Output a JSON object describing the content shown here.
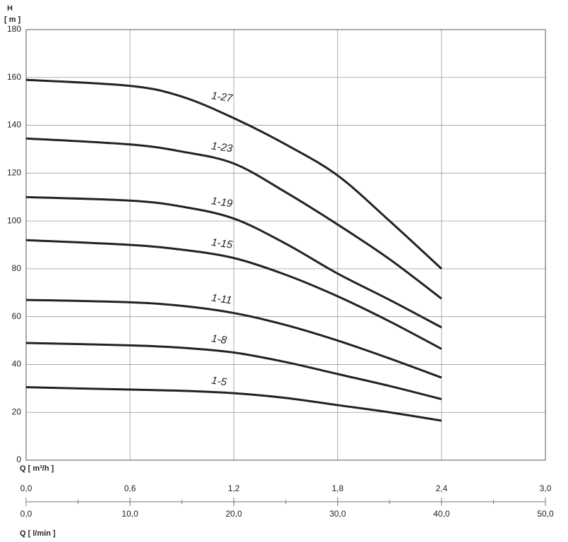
{
  "chart_data": {
    "type": "line",
    "y_label": "H",
    "y_unit": "[ m ]",
    "x_label": "Q [ m³/h ]",
    "x2_label": "Q [ l/min ]",
    "x": [
      0,
      0.6,
      0.9,
      1.2,
      1.5,
      1.8,
      2.1,
      2.4
    ],
    "series": [
      {
        "name": "1-27",
        "color": "#222222",
        "values": [
          159,
          156.5,
          152,
          143,
          132,
          119,
          100,
          80
        ]
      },
      {
        "name": "1-23",
        "color": "#222222",
        "values": [
          134.5,
          132,
          129,
          124,
          112,
          98.5,
          84,
          67.5
        ]
      },
      {
        "name": "1-19",
        "color": "#222222",
        "values": [
          110,
          108.5,
          106,
          101,
          90.5,
          78,
          67,
          55.5
        ]
      },
      {
        "name": "1-15",
        "color": "#222222",
        "values": [
          92,
          90,
          88,
          84.5,
          77.5,
          68.5,
          58,
          46.5
        ]
      },
      {
        "name": "1-11",
        "color": "#222222",
        "values": [
          67,
          66,
          64.5,
          61.5,
          56.5,
          50,
          42.5,
          34.5
        ]
      },
      {
        "name": "1-8",
        "color": "#222222",
        "values": [
          49,
          48,
          47,
          45,
          41,
          36,
          31,
          25.5
        ]
      },
      {
        "name": "1-5",
        "color": "#222222",
        "values": [
          30.5,
          29.5,
          29,
          28,
          26,
          23,
          20,
          16.5
        ]
      }
    ],
    "xlim": [
      0,
      3
    ],
    "xticks": [
      {
        "value": 0,
        "label": "0,0"
      },
      {
        "value": 0.6,
        "label": "0,6"
      },
      {
        "value": 1.2,
        "label": "1,2"
      },
      {
        "value": 1.8,
        "label": "1,8"
      },
      {
        "value": 2.4,
        "label": "2,4"
      },
      {
        "value": 3,
        "label": "3,0"
      }
    ],
    "x2lim": [
      0,
      50
    ],
    "x2ticks": [
      {
        "value": 0,
        "label": "0,0"
      },
      {
        "value": 10,
        "label": "10,0"
      },
      {
        "value": 20,
        "label": "20,0"
      },
      {
        "value": 30,
        "label": "30,0"
      },
      {
        "value": 40,
        "label": "40,0"
      },
      {
        "value": 50,
        "label": "50,0"
      }
    ],
    "x2minor_ticks": [
      5,
      15,
      25,
      35,
      45
    ],
    "ylim": [
      0,
      180
    ],
    "yticks": [
      0,
      20,
      40,
      60,
      80,
      100,
      120,
      140,
      160,
      180
    ],
    "grid": true
  }
}
